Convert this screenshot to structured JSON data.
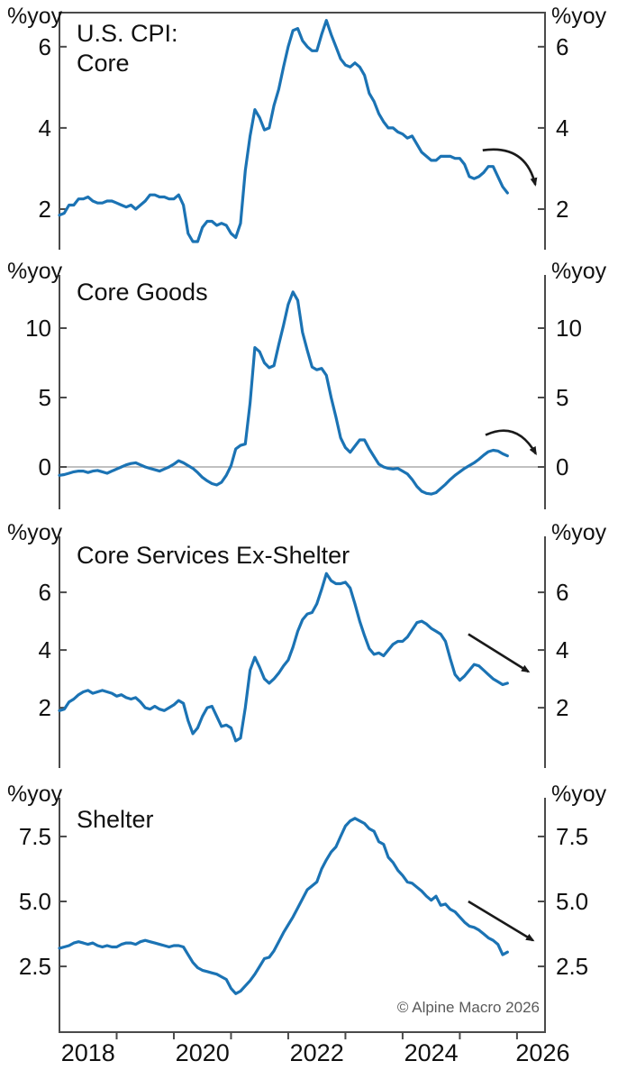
{
  "figure": {
    "copyright": "© Alpine Macro 2026",
    "colors": {
      "background": "#ffffff",
      "line": "#1b73b4",
      "axis": "#4a4a4a",
      "text": "#111111",
      "zero_line": "#9a9a9a",
      "arrow": "#1a1a1a",
      "copyright": "#5a5a5a"
    }
  },
  "x_axis": {
    "range": [
      2018,
      2026.49
    ],
    "tick_years": [
      2019,
      2020,
      2021,
      2022,
      2023,
      2024,
      2025,
      2026
    ],
    "labels": [
      {
        "text": "2018",
        "year": 2018.5
      },
      {
        "text": "2020",
        "year": 2020.5
      },
      {
        "text": "2022",
        "year": 2022.5
      },
      {
        "text": "2024",
        "year": 2024.5
      },
      {
        "text": "2026",
        "year": 2026.45
      }
    ]
  },
  "chart_data": [
    {
      "id": "panel-us-cpi-core",
      "type": "line",
      "title_lines": [
        "U.S. CPI:",
        "Core"
      ],
      "unit_label_left": "%yoy",
      "unit_label_right": "%yoy",
      "y_ticks": [
        2,
        4,
        6
      ],
      "ylim": [
        1.0,
        6.84
      ],
      "x_start": 2018.0,
      "x_interval": "monthly",
      "top_border": true,
      "zero_line": false,
      "values": [
        1.85,
        1.9,
        2.1,
        2.1,
        2.25,
        2.25,
        2.3,
        2.2,
        2.15,
        2.15,
        2.2,
        2.2,
        2.15,
        2.1,
        2.05,
        2.1,
        2.0,
        2.1,
        2.2,
        2.35,
        2.35,
        2.3,
        2.3,
        2.25,
        2.25,
        2.35,
        2.1,
        1.4,
        1.2,
        1.2,
        1.55,
        1.7,
        1.7,
        1.6,
        1.65,
        1.6,
        1.4,
        1.3,
        1.65,
        2.95,
        3.8,
        4.45,
        4.25,
        3.95,
        4.0,
        4.55,
        4.95,
        5.5,
        6.0,
        6.4,
        6.45,
        6.15,
        6.0,
        5.9,
        5.9,
        6.3,
        6.65,
        6.3,
        6.0,
        5.7,
        5.55,
        5.5,
        5.6,
        5.5,
        5.3,
        4.85,
        4.65,
        4.35,
        4.15,
        4.0,
        4.0,
        3.9,
        3.85,
        3.75,
        3.8,
        3.6,
        3.4,
        3.3,
        3.2,
        3.2,
        3.3,
        3.3,
        3.3,
        3.25,
        3.25,
        3.1,
        2.8,
        2.75,
        2.8,
        2.9,
        3.05,
        3.05,
        2.8,
        2.55,
        2.4
      ],
      "arrow": {
        "style": "curved",
        "from": [
          2025.4,
          3.45
        ],
        "ctrl": [
          2026.15,
          3.6
        ],
        "to": [
          2026.32,
          2.6
        ]
      }
    },
    {
      "id": "panel-core-goods",
      "type": "line",
      "title_lines": [
        "Core Goods"
      ],
      "unit_label_left": "%yoy",
      "unit_label_right": "%yoy",
      "y_ticks": [
        0,
        5,
        10
      ],
      "ylim": [
        -3.05,
        13.83
      ],
      "x_start": 2018.0,
      "x_interval": "monthly",
      "top_border": false,
      "zero_line": true,
      "values": [
        -0.6,
        -0.55,
        -0.45,
        -0.35,
        -0.3,
        -0.3,
        -0.4,
        -0.3,
        -0.25,
        -0.35,
        -0.45,
        -0.3,
        -0.15,
        0.0,
        0.15,
        0.25,
        0.3,
        0.15,
        0.0,
        -0.1,
        -0.2,
        -0.3,
        -0.15,
        0.0,
        0.2,
        0.45,
        0.3,
        0.1,
        -0.1,
        -0.4,
        -0.75,
        -1.0,
        -1.2,
        -1.3,
        -1.1,
        -0.6,
        0.1,
        1.3,
        1.55,
        1.65,
        4.6,
        8.6,
        8.3,
        7.5,
        7.15,
        7.3,
        8.8,
        10.2,
        11.7,
        12.6,
        12.0,
        9.7,
        8.4,
        7.2,
        7.0,
        7.1,
        6.6,
        5.0,
        3.6,
        2.1,
        1.4,
        1.05,
        1.5,
        1.95,
        1.95,
        1.3,
        0.75,
        0.2,
        0.0,
        -0.1,
        -0.15,
        -0.1,
        -0.3,
        -0.5,
        -0.9,
        -1.4,
        -1.75,
        -1.9,
        -1.95,
        -1.85,
        -1.55,
        -1.25,
        -0.9,
        -0.6,
        -0.35,
        -0.1,
        0.1,
        0.3,
        0.55,
        0.85,
        1.1,
        1.2,
        1.15,
        0.95,
        0.8
      ],
      "arrow": {
        "style": "curved",
        "from": [
          2025.45,
          2.3
        ],
        "ctrl": [
          2026.0,
          3.35
        ],
        "to": [
          2026.33,
          0.95
        ]
      }
    },
    {
      "id": "panel-core-services-ex-shelter",
      "type": "line",
      "title_lines": [
        "Core Services Ex-Shelter"
      ],
      "unit_label_left": "%yoy",
      "unit_label_right": "%yoy",
      "y_ticks": [
        2,
        4,
        6
      ],
      "ylim": [
        -0.09,
        7.94
      ],
      "x_start": 2018.0,
      "x_interval": "monthly",
      "top_border": false,
      "zero_line": false,
      "values": [
        1.9,
        1.95,
        2.2,
        2.3,
        2.45,
        2.55,
        2.6,
        2.5,
        2.55,
        2.6,
        2.55,
        2.5,
        2.4,
        2.45,
        2.35,
        2.3,
        2.35,
        2.2,
        2.0,
        1.95,
        2.05,
        1.95,
        1.9,
        2.0,
        2.1,
        2.25,
        2.15,
        1.55,
        1.1,
        1.3,
        1.7,
        2.0,
        2.05,
        1.7,
        1.35,
        1.4,
        1.3,
        0.85,
        0.95,
        2.0,
        3.3,
        3.75,
        3.4,
        3.0,
        2.85,
        3.0,
        3.2,
        3.45,
        3.65,
        4.1,
        4.65,
        5.05,
        5.25,
        5.3,
        5.6,
        6.1,
        6.65,
        6.4,
        6.3,
        6.3,
        6.35,
        6.15,
        5.6,
        5.0,
        4.5,
        4.05,
        3.85,
        3.9,
        3.8,
        4.0,
        4.2,
        4.3,
        4.3,
        4.45,
        4.7,
        4.95,
        5.0,
        4.9,
        4.75,
        4.65,
        4.55,
        4.3,
        3.7,
        3.15,
        2.95,
        3.1,
        3.3,
        3.5,
        3.45,
        3.3,
        3.15,
        3.0,
        2.9,
        2.8,
        2.85
      ],
      "arrow": {
        "style": "straight",
        "from": [
          2025.15,
          4.55
        ],
        "to": [
          2026.2,
          3.25
        ]
      }
    },
    {
      "id": "panel-shelter",
      "type": "line",
      "title_lines": [
        "Shelter"
      ],
      "unit_label_left": "%yoy",
      "unit_label_right": "%yoy",
      "y_ticks": [
        2.5,
        5.0,
        7.5
      ],
      "y_tick_labels": [
        "2.5",
        "5.0",
        "7.5"
      ],
      "ylim": [
        -0.03,
        8.99
      ],
      "x_start": 2018.0,
      "x_interval": "monthly",
      "top_border": false,
      "zero_line": false,
      "values": [
        3.2,
        3.25,
        3.3,
        3.4,
        3.45,
        3.4,
        3.35,
        3.4,
        3.3,
        3.25,
        3.3,
        3.25,
        3.25,
        3.35,
        3.4,
        3.4,
        3.35,
        3.45,
        3.5,
        3.45,
        3.4,
        3.35,
        3.3,
        3.25,
        3.3,
        3.3,
        3.25,
        2.95,
        2.65,
        2.45,
        2.35,
        2.3,
        2.25,
        2.2,
        2.1,
        2.0,
        1.65,
        1.45,
        1.55,
        1.75,
        1.95,
        2.2,
        2.5,
        2.8,
        2.85,
        3.1,
        3.45,
        3.8,
        4.1,
        4.4,
        4.75,
        5.1,
        5.45,
        5.6,
        5.75,
        6.25,
        6.6,
        6.9,
        7.1,
        7.5,
        7.9,
        8.1,
        8.2,
        8.1,
        8.0,
        7.8,
        7.7,
        7.3,
        7.2,
        6.7,
        6.5,
        6.2,
        6.0,
        5.75,
        5.7,
        5.55,
        5.4,
        5.2,
        5.05,
        5.2,
        4.85,
        4.9,
        4.7,
        4.6,
        4.4,
        4.2,
        4.05,
        4.0,
        3.9,
        3.75,
        3.6,
        3.5,
        3.35,
        2.95,
        3.05
      ],
      "arrow": {
        "style": "straight",
        "from": [
          2025.15,
          5.0
        ],
        "to": [
          2026.28,
          3.5
        ]
      }
    }
  ]
}
